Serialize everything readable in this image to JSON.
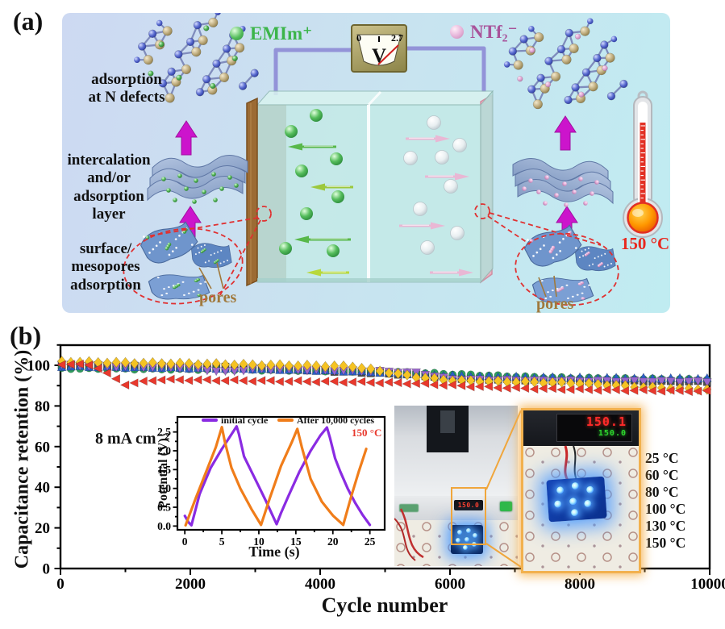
{
  "figure": {
    "panel_a_label": "(a)",
    "panel_b_label": "(b)"
  },
  "panel_a": {
    "cation_legend": "EMIm⁺",
    "anion_legend": "NTf₂⁻",
    "voltmeter": {
      "min": "0",
      "max": "2.7",
      "unit": "V"
    },
    "label_adsorption": "adsorption\nat N defects",
    "label_intercalation": "intercalation\nand/or\nadsorption\nlayer",
    "label_surface": "surface/\nmesopores\nadsorption",
    "label_pores_left": "pores",
    "label_pores_right": "pores",
    "thermometer_label": "150 °C",
    "accent_colors": {
      "cation": "#3cb54a",
      "anion": "#a8539a",
      "arrow": "#cc14cc",
      "pores_text": "#a0793c",
      "dashed_annotation": "#e03030"
    }
  },
  "panel_b": {
    "current_density": "8 mA cm⁻²",
    "inset_temperature": "150 °C",
    "photo_left_display": "150.0",
    "photo_right_display_top": "150.1",
    "photo_right_display_bottom": "150.0"
  },
  "chart_data": [
    {
      "type": "scatter",
      "title": "",
      "xlabel": "Cycle number",
      "ylabel": "Capacitance retention (%)",
      "xlim": [
        0,
        10000
      ],
      "ylim": [
        0,
        110
      ],
      "xticks": [
        0,
        2000,
        4000,
        6000,
        8000,
        10000
      ],
      "yticks": [
        0,
        20,
        40,
        60,
        80,
        100
      ],
      "grid": false,
      "legend_position": "right",
      "annotation": "8 mA cm⁻²",
      "x": [
        0,
        500,
        1000,
        1500,
        2000,
        2500,
        3000,
        3500,
        4000,
        4500,
        5000,
        5500,
        6000,
        6500,
        7000,
        7500,
        8000,
        8500,
        9000,
        9500,
        10000
      ],
      "series": [
        {
          "name": "25 °C",
          "marker": "square",
          "color": "#4f4f4f",
          "values": [
            100.0,
            99.8,
            99.6,
            99.4,
            99.2,
            99.0,
            98.6,
            98.1,
            97.4,
            96.7,
            96.0,
            95.2,
            93.8,
            93.2,
            92.9,
            92.6,
            92.4,
            92.3,
            92.2,
            92.1,
            92.0
          ]
        },
        {
          "name": "60 °C",
          "marker": "circle",
          "color": "#2f9e5f",
          "values": [
            98.5,
            98.3,
            98.2,
            98.1,
            98.0,
            97.9,
            97.7,
            97.5,
            97.3,
            97.1,
            96.8,
            96.3,
            95.7,
            95.1,
            94.5,
            94.0,
            93.7,
            93.5,
            93.3,
            93.1,
            93.0
          ]
        },
        {
          "name": "80 °C",
          "marker": "triangle-up",
          "color": "#2b5fc7",
          "values": [
            99.4,
            99.2,
            99.0,
            98.8,
            98.6,
            98.4,
            98.1,
            97.8,
            97.4,
            97.0,
            96.4,
            95.6,
            94.9,
            94.5,
            94.2,
            94.0,
            93.8,
            93.7,
            93.6,
            93.5,
            93.4
          ]
        },
        {
          "name": "100 °C",
          "marker": "triangle-down",
          "color": "#9a66cc",
          "values": [
            100.2,
            99.7,
            99.3,
            99.0,
            98.8,
            96.8,
            98.2,
            97.9,
            97.6,
            97.3,
            97.0,
            96.3,
            93.2,
            92.8,
            92.6,
            92.4,
            92.3,
            92.2,
            92.1,
            92.0,
            91.9
          ]
        },
        {
          "name": "130 °C",
          "marker": "diamond",
          "color": "#f5c324",
          "values": [
            101.8,
            101.5,
            101.2,
            101.0,
            100.8,
            100.5,
            100.2,
            100.0,
            99.7,
            99.4,
            96.8,
            94.2,
            92.6,
            92.2,
            91.9,
            91.6,
            91.2,
            90.2,
            89.2,
            88.6,
            88.2
          ]
        },
        {
          "name": "150 °C",
          "marker": "triangle-left",
          "color": "#e8392d",
          "values": [
            100.6,
            100.2,
            90.6,
            93.0,
            92.8,
            92.6,
            92.4,
            92.2,
            92.0,
            91.8,
            91.5,
            91.0,
            90.2,
            89.4,
            88.8,
            88.4,
            88.1,
            87.8,
            87.6,
            87.4,
            87.2
          ]
        }
      ]
    },
    {
      "type": "line",
      "xlabel": "Time (s)",
      "ylabel": "Potential (V)",
      "xlim": [
        -1,
        27
      ],
      "ylim": [
        -0.1,
        2.9
      ],
      "xticks": [
        0,
        5,
        10,
        15,
        20,
        25
      ],
      "yticks": [
        0.0,
        0.5,
        1.0,
        1.5,
        2.0,
        2.5
      ],
      "grid": false,
      "legend_position": "top",
      "annotation": "150 °C",
      "series": [
        {
          "name": "initial cycle",
          "color": "#8a2be2",
          "points": [
            [
              0,
              0.27
            ],
            [
              0.5,
              0.1
            ],
            [
              0.9,
              0.02
            ],
            [
              2,
              0.85
            ],
            [
              3.5,
              1.55
            ],
            [
              5,
              2.05
            ],
            [
              6,
              2.35
            ],
            [
              7,
              2.65
            ],
            [
              7.3,
              2.45
            ],
            [
              8,
              1.85
            ],
            [
              9,
              1.45
            ],
            [
              10,
              1.05
            ],
            [
              11,
              0.65
            ],
            [
              12.4,
              0.05
            ],
            [
              13,
              0.35
            ],
            [
              14,
              0.8
            ],
            [
              15.5,
              1.45
            ],
            [
              17,
              2.0
            ],
            [
              18.3,
              2.4
            ],
            [
              19.2,
              2.62
            ],
            [
              19.6,
              2.35
            ],
            [
              20.3,
              1.8
            ],
            [
              21,
              1.45
            ],
            [
              22,
              1.0
            ],
            [
              23,
              0.62
            ],
            [
              24,
              0.3
            ],
            [
              25,
              0.03
            ]
          ]
        },
        {
          "name": "After 10,000 cycles",
          "color": "#f07d1a",
          "points": [
            [
              0.1,
              0.02
            ],
            [
              1.5,
              0.75
            ],
            [
              3,
              1.5
            ],
            [
              4.2,
              2.1
            ],
            [
              5,
              2.63
            ],
            [
              5.4,
              2.25
            ],
            [
              6.3,
              1.55
            ],
            [
              7.5,
              1.0
            ],
            [
              9,
              0.45
            ],
            [
              10.3,
              0.03
            ],
            [
              11.5,
              0.75
            ],
            [
              13,
              1.6
            ],
            [
              14.5,
              2.25
            ],
            [
              15.2,
              2.58
            ],
            [
              15.8,
              2.1
            ],
            [
              17,
              1.25
            ],
            [
              18.5,
              0.65
            ],
            [
              20,
              0.28
            ],
            [
              21.4,
              0.03
            ],
            [
              22.5,
              0.8
            ],
            [
              23.5,
              1.45
            ],
            [
              24.5,
              2.05
            ]
          ]
        }
      ]
    }
  ]
}
